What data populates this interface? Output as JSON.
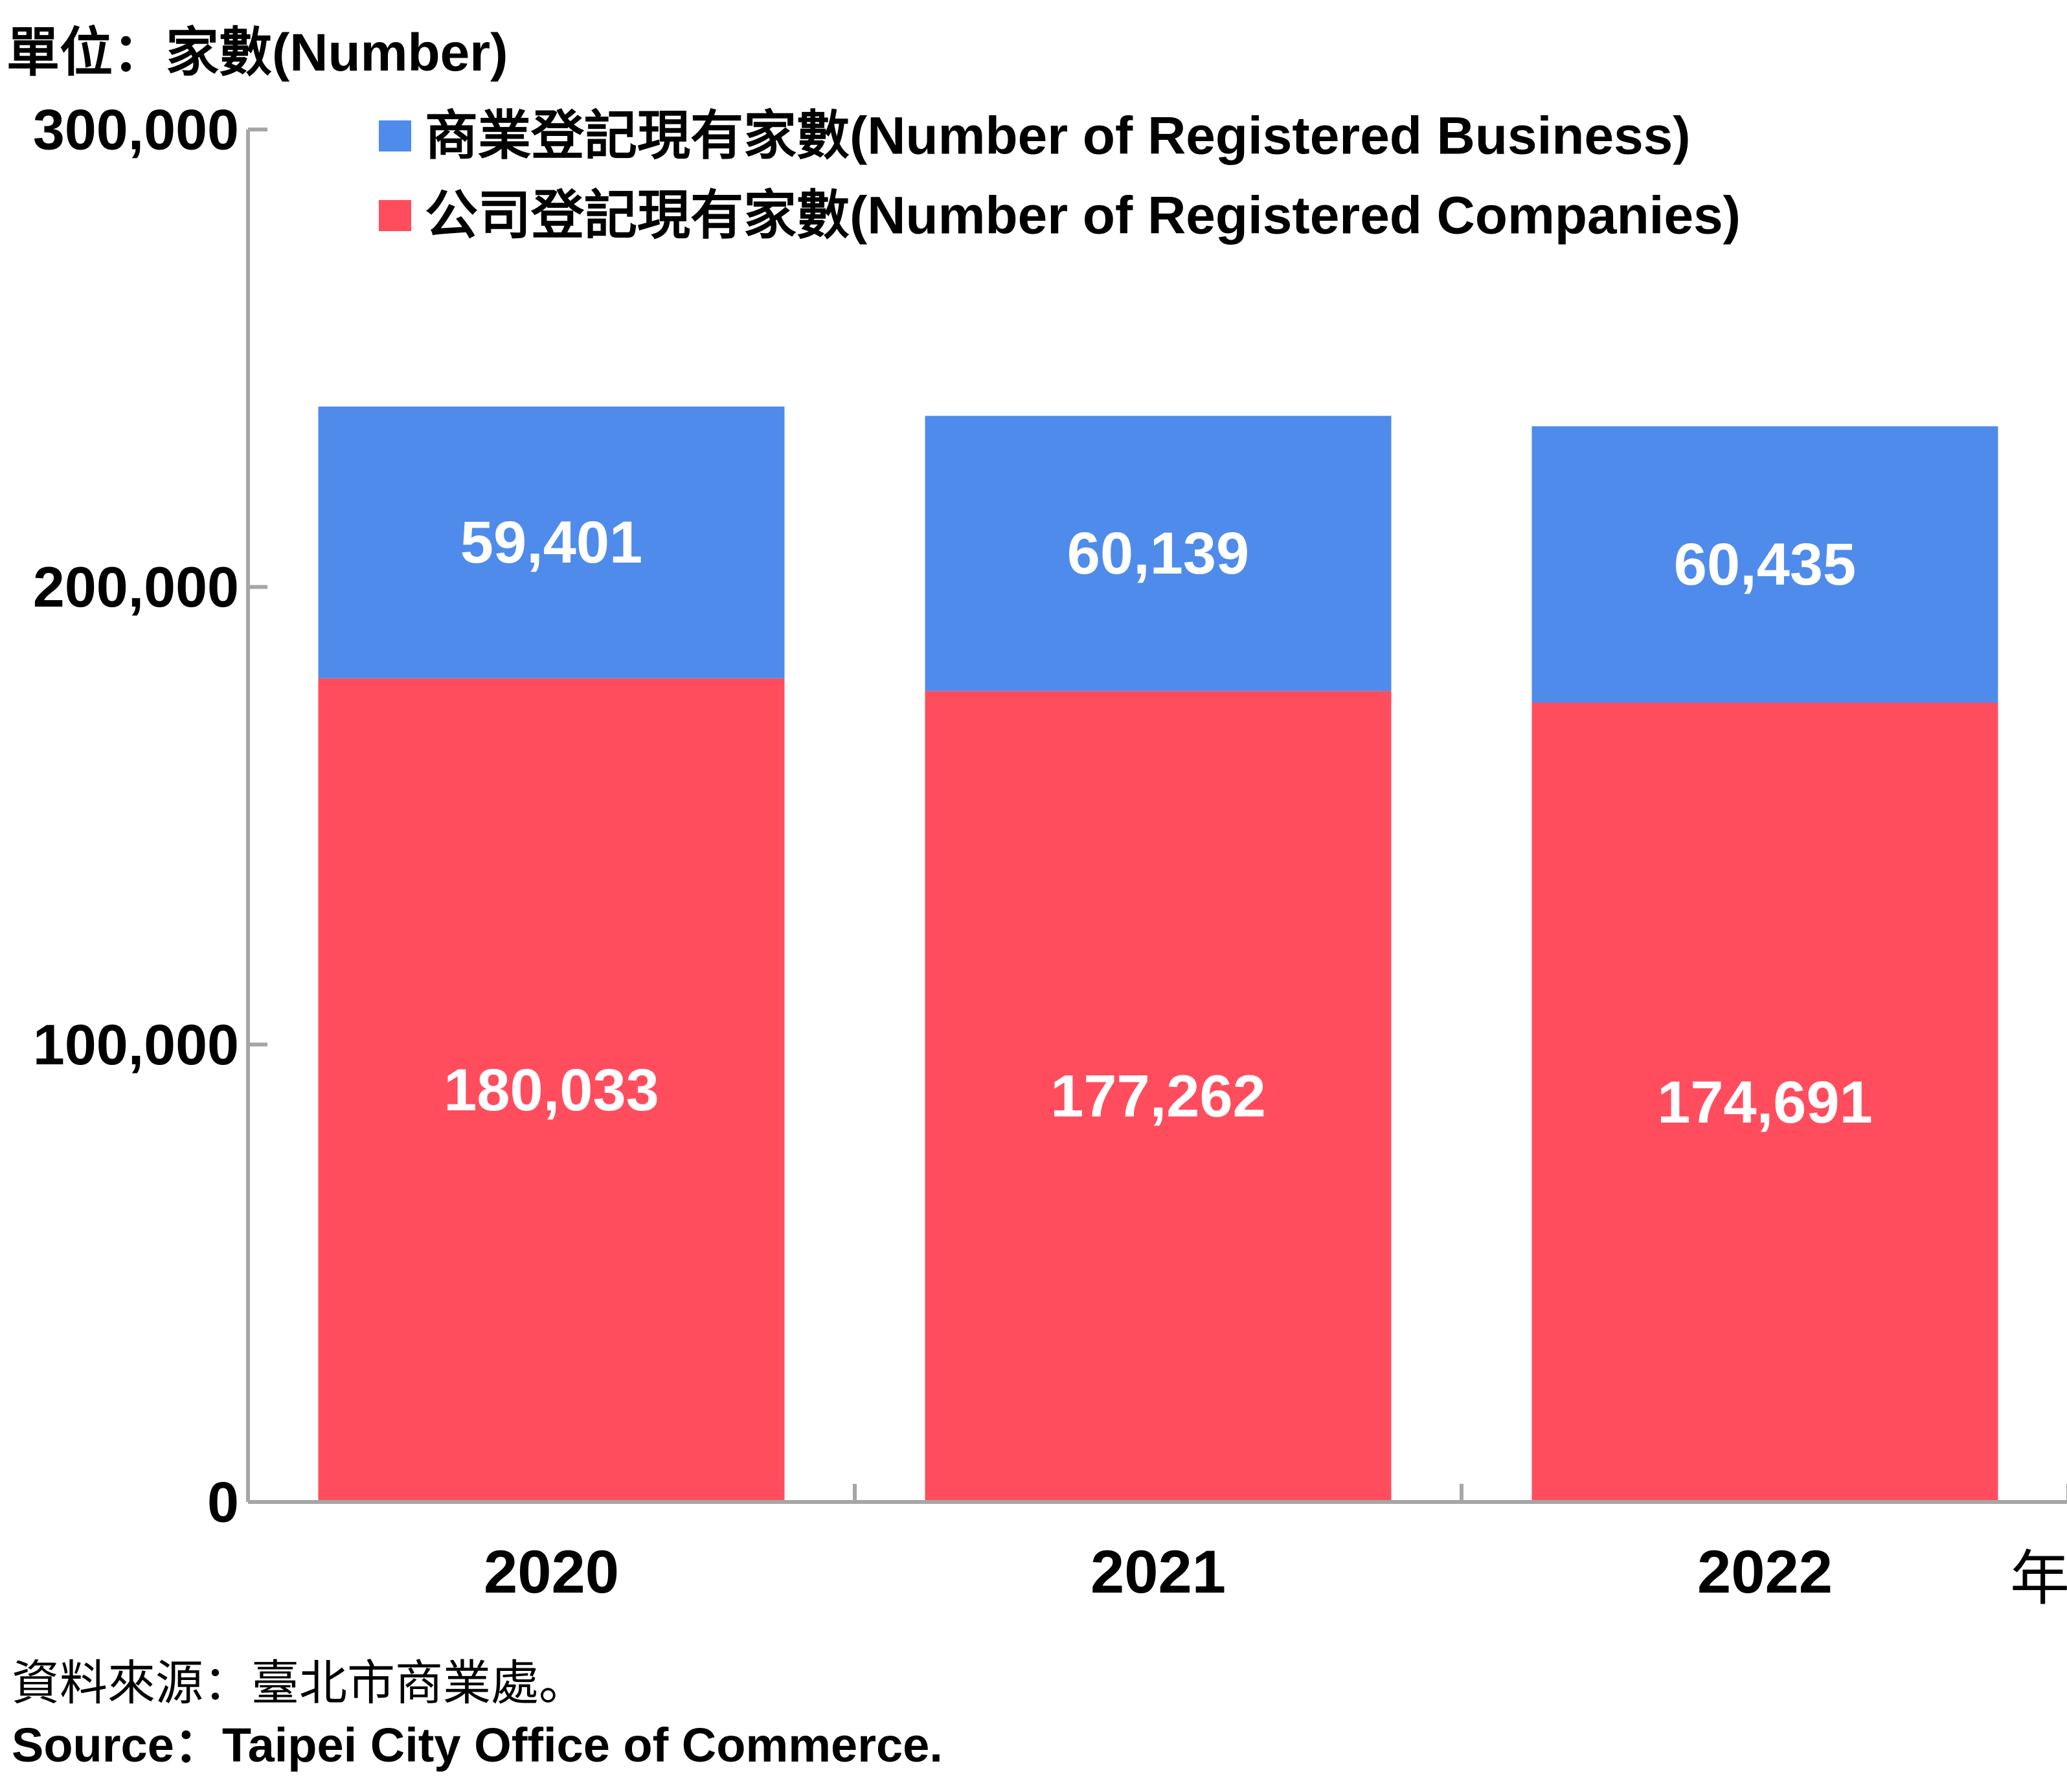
{
  "unit_label": "單位：家數(Number)",
  "source_zh": "資料來源：臺北市商業處。",
  "source_en": "Source：Taipei City Office of Commerce.",
  "x_unit": "年",
  "colors": {
    "business": "#4F8BEB",
    "companies": "#FF4D5E",
    "axis": "#A6A6A6"
  },
  "chart_data": {
    "type": "bar",
    "stacked": true,
    "categories": [
      "2020",
      "2021",
      "2022"
    ],
    "series": [
      {
        "name": "公司登記現有家數(Number of Registered Companies)",
        "values": [
          180033,
          177262,
          174691
        ]
      },
      {
        "name": "商業登記現有家數(Number of Registered Business)",
        "values": [
          59401,
          60139,
          60435
        ]
      }
    ],
    "data_labels": [
      [
        "180,033",
        "177,262",
        "174,691"
      ],
      [
        "59,401",
        "60,139",
        "60,435"
      ]
    ],
    "ylim": [
      0,
      300000
    ],
    "yticks": [
      0,
      100000,
      200000,
      300000
    ],
    "ytick_labels": [
      "0",
      "100,000",
      "200,000",
      "300,000"
    ],
    "xlabel": "年",
    "ylabel": "",
    "legend_position": "top",
    "grid": false
  }
}
